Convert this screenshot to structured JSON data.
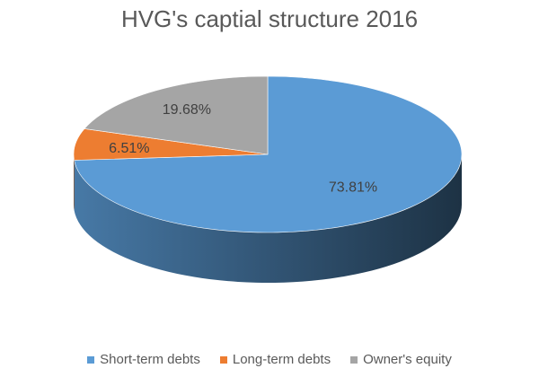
{
  "colors": {
    "text": "#595959"
  },
  "chart_data": {
    "type": "pie",
    "title": "HVG's captial structure 2016",
    "categories": [
      "Short-term debts",
      "Long-term debts",
      "Owner's equity"
    ],
    "values": [
      73.81,
      6.51,
      19.68
    ],
    "labels": [
      "73.81%",
      "6.51%",
      "19.68%"
    ],
    "colors": [
      "#5B9BD5",
      "#ED7D31",
      "#A5A5A5"
    ],
    "style": "3d",
    "legend": "bottom"
  }
}
